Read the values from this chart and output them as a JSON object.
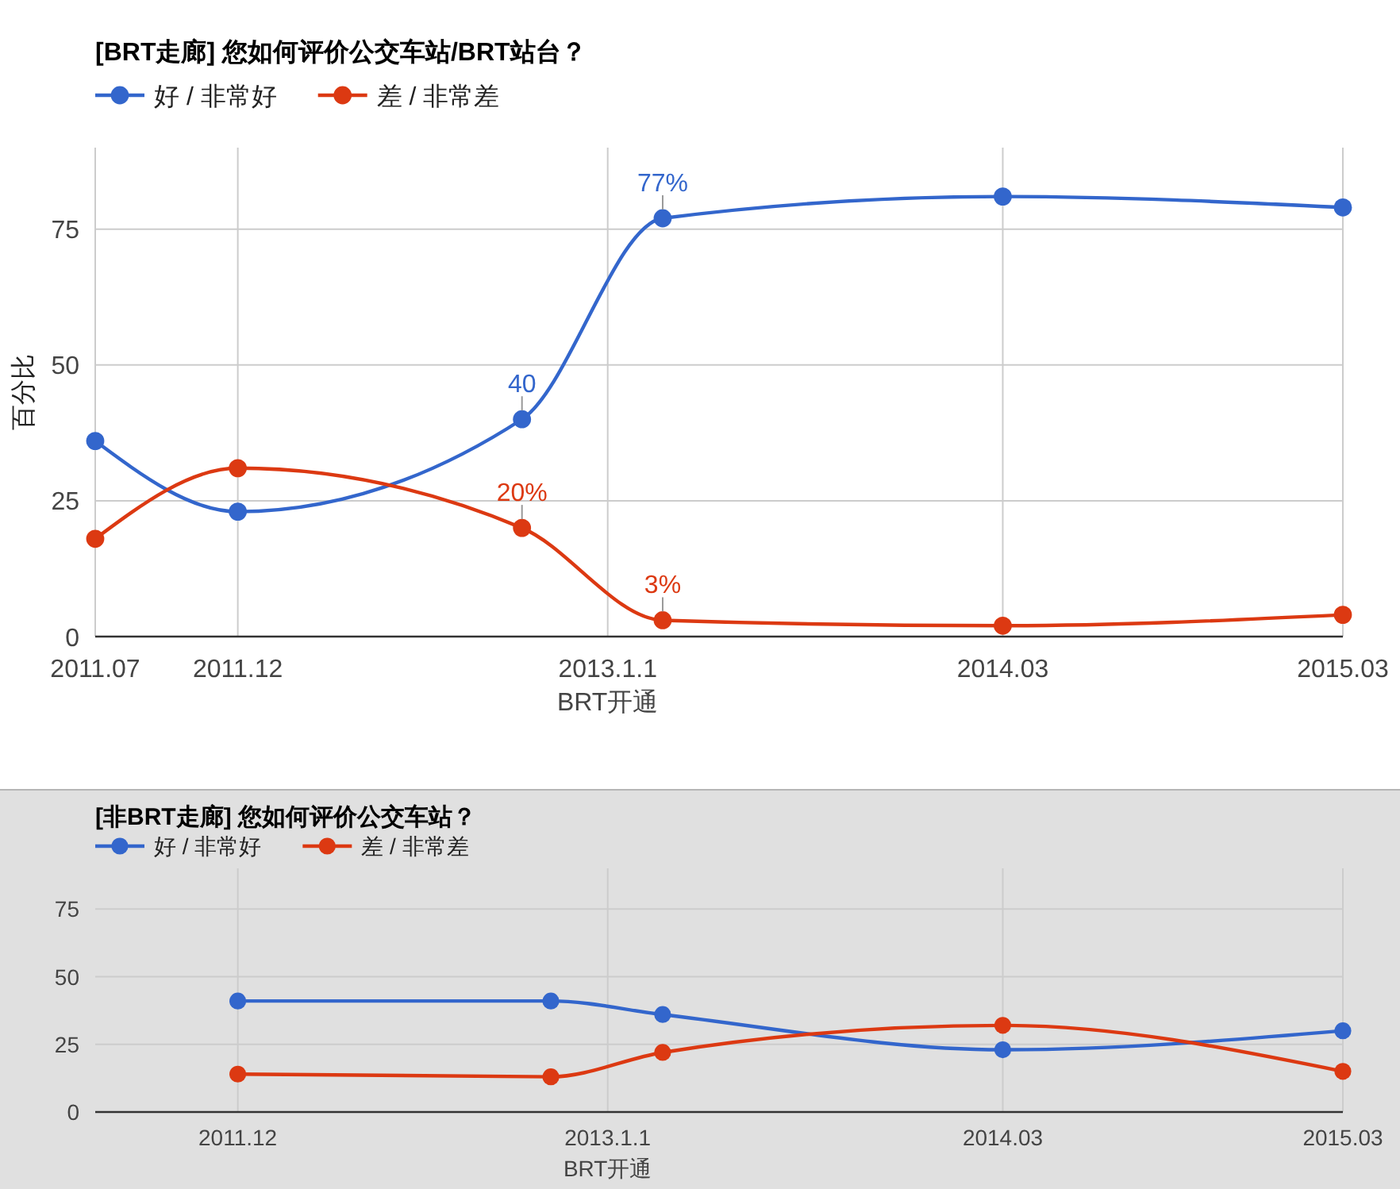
{
  "chart_data": [
    {
      "type": "line",
      "title": "[BRT走廊] 您如何评价公交车站/BRT站台？",
      "ylabel": "百分比",
      "x": [
        "2011-07",
        "2011-12",
        "2012-10",
        "2013-03",
        "2014-03",
        "2015-03"
      ],
      "series": [
        {
          "name": "好 / 非常好",
          "color": "#3366cc",
          "values": [
            36,
            23,
            40,
            77,
            81,
            79
          ],
          "value_labels": [
            null,
            null,
            "40",
            "77%",
            null,
            null
          ]
        },
        {
          "name": "差 / 非常差",
          "color": "#dc3912",
          "values": [
            18,
            31,
            20,
            3,
            2,
            4
          ],
          "value_labels": [
            null,
            null,
            "20%",
            "3%",
            null,
            null
          ]
        }
      ],
      "xlim": [
        "2011-07",
        "2015-03"
      ],
      "xticks": [
        {
          "value": "2011-07",
          "label": "2011.07"
        },
        {
          "value": "2011-12",
          "label": "2011.12"
        },
        {
          "value": "2013-01-01",
          "label": "2013.1.1\nBRT开通"
        },
        {
          "value": "2014-03",
          "label": "2014.03"
        },
        {
          "value": "2015-03",
          "label": "2015.03"
        }
      ],
      "ylim": [
        0,
        90
      ],
      "yticks": [
        0,
        25,
        50,
        75
      ],
      "grid": true,
      "legend": "top left",
      "marker": "circle",
      "line_style": "solid"
    },
    {
      "type": "line",
      "title": "[非BRT走廊] 您如何评价公交车站？",
      "x": [
        "2011-12",
        "2012-11",
        "2013-03",
        "2014-03",
        "2015-03"
      ],
      "series": [
        {
          "name": "好 / 非常好",
          "color": "#3366cc",
          "values": [
            41,
            41,
            36,
            23,
            30
          ]
        },
        {
          "name": "差 / 非常差",
          "color": "#dc3912",
          "values": [
            14,
            13,
            22,
            32,
            15
          ]
        }
      ],
      "xlim": [
        "2011-07",
        "2015-03"
      ],
      "xticks": [
        {
          "value": "2011-12",
          "label": "2011.12"
        },
        {
          "value": "2013-01-01",
          "label": "2013.1.1\nBRT开通"
        },
        {
          "value": "2014-03",
          "label": "2014.03"
        },
        {
          "value": "2015-03",
          "label": "2015.03"
        }
      ],
      "ylim": [
        0,
        90
      ],
      "yticks": [
        0,
        25,
        50,
        75
      ],
      "grid": true,
      "legend": "top left",
      "marker": "circle",
      "line_style": "solid"
    }
  ]
}
